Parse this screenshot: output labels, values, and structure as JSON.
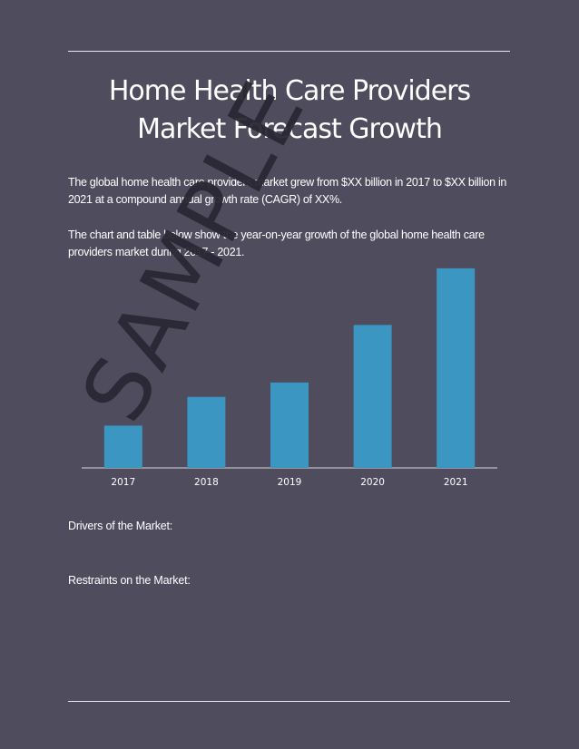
{
  "title_line1": "Home Health Care Providers",
  "title_line2": "Market Forecast Growth",
  "paragraph1": "The global home health care providers market grew from $XX billion in 2017 to $XX billion in 2021 at a compound annual growth rate (CAGR) of XX%.",
  "paragraph2": "The chart and table below show the year-on-year growth of the global home health care providers market during 2017 - 2021.",
  "drivers_label": "Drivers of the Market:",
  "restraints_label": "Restraints on the Market:",
  "watermark": "SAMPLE",
  "colors": {
    "background": "#4f4c5e",
    "bar": "#3b97c2",
    "text": "#ffffff",
    "watermark": "#2a2833"
  },
  "chart_data": {
    "type": "bar",
    "categories": [
      "2017",
      "2018",
      "2019",
      "2020",
      "2021"
    ],
    "values": [
      47,
      79,
      95,
      159,
      222
    ],
    "ylim": [
      0,
      230
    ],
    "title": "",
    "xlabel": "",
    "ylabel": "",
    "grid": false
  }
}
